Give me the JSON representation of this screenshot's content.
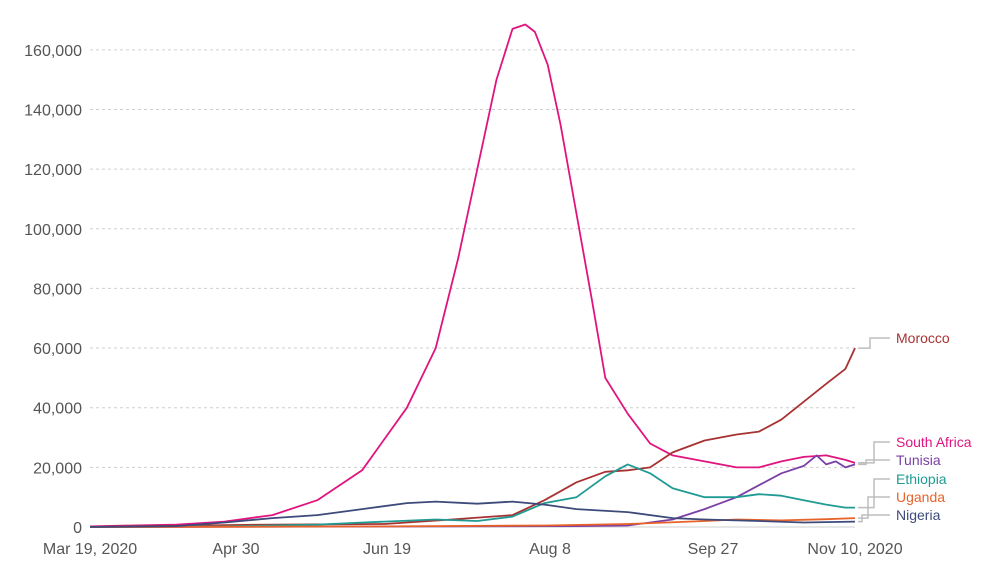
{
  "chart_data": {
    "type": "line",
    "x_ticks": [
      "Mar 19, 2020",
      "Apr 30",
      "Jun 19",
      "Aug 8",
      "Sep 27",
      "Nov 10, 2020"
    ],
    "y_ticks": [
      "0",
      "20,000",
      "40,000",
      "60,000",
      "80,000",
      "100,000",
      "120,000",
      "140,000",
      "160,000"
    ],
    "ylim": [
      0,
      170000
    ],
    "xlim": [
      "2020-03-19",
      "2020-11-13"
    ],
    "grid": "horizontal dashed",
    "legend": "end-of-line labels on right",
    "series": [
      {
        "name": "South Africa",
        "color": "#e0147f",
        "points": [
          [
            "2020-03-19",
            200
          ],
          [
            "2020-04-01",
            500
          ],
          [
            "2020-04-15",
            800
          ],
          [
            "2020-04-30",
            1800
          ],
          [
            "2020-05-15",
            4000
          ],
          [
            "2020-05-29",
            9000
          ],
          [
            "2020-06-12",
            19000
          ],
          [
            "2020-06-26",
            40000
          ],
          [
            "2020-07-05",
            60000
          ],
          [
            "2020-07-12",
            90000
          ],
          [
            "2020-07-18",
            120000
          ],
          [
            "2020-07-24",
            150000
          ],
          [
            "2020-07-29",
            167000
          ],
          [
            "2020-08-02",
            168500
          ],
          [
            "2020-08-05",
            166000
          ],
          [
            "2020-08-09",
            155000
          ],
          [
            "2020-08-13",
            135000
          ],
          [
            "2020-08-18",
            105000
          ],
          [
            "2020-08-23",
            75000
          ],
          [
            "2020-08-27",
            50000
          ],
          [
            "2020-09-03",
            38000
          ],
          [
            "2020-09-10",
            28000
          ],
          [
            "2020-09-17",
            24000
          ],
          [
            "2020-09-27",
            22000
          ],
          [
            "2020-10-07",
            20000
          ],
          [
            "2020-10-14",
            20000
          ],
          [
            "2020-10-21",
            22000
          ],
          [
            "2020-10-28",
            23500
          ],
          [
            "2020-11-04",
            24000
          ],
          [
            "2020-11-10",
            22500
          ],
          [
            "2020-11-13",
            21500
          ]
        ]
      },
      {
        "name": "Morocco",
        "color": "#a83232",
        "points": [
          [
            "2020-03-19",
            50
          ],
          [
            "2020-04-15",
            400
          ],
          [
            "2020-05-15",
            800
          ],
          [
            "2020-06-19",
            1000
          ],
          [
            "2020-07-10",
            2500
          ],
          [
            "2020-07-29",
            4000
          ],
          [
            "2020-08-08",
            9000
          ],
          [
            "2020-08-18",
            15000
          ],
          [
            "2020-08-27",
            18500
          ],
          [
            "2020-09-03",
            19000
          ],
          [
            "2020-09-10",
            20000
          ],
          [
            "2020-09-17",
            25000
          ],
          [
            "2020-09-27",
            29000
          ],
          [
            "2020-10-07",
            31000
          ],
          [
            "2020-10-14",
            32000
          ],
          [
            "2020-10-21",
            36000
          ],
          [
            "2020-10-28",
            42000
          ],
          [
            "2020-11-04",
            48000
          ],
          [
            "2020-11-10",
            53000
          ],
          [
            "2020-11-13",
            60000
          ]
        ]
      },
      {
        "name": "Tunisia",
        "color": "#7b3fa6",
        "points": [
          [
            "2020-03-19",
            0
          ],
          [
            "2020-05-15",
            100
          ],
          [
            "2020-07-10",
            200
          ],
          [
            "2020-08-18",
            300
          ],
          [
            "2020-09-03",
            500
          ],
          [
            "2020-09-17",
            2500
          ],
          [
            "2020-09-27",
            6000
          ],
          [
            "2020-10-07",
            10000
          ],
          [
            "2020-10-14",
            14000
          ],
          [
            "2020-10-21",
            18000
          ],
          [
            "2020-10-28",
            20500
          ],
          [
            "2020-11-01",
            24000
          ],
          [
            "2020-11-04",
            21000
          ],
          [
            "2020-11-07",
            22000
          ],
          [
            "2020-11-10",
            20000
          ],
          [
            "2020-11-13",
            21000
          ]
        ]
      },
      {
        "name": "Ethiopia",
        "color": "#1f9b93",
        "points": [
          [
            "2020-03-19",
            0
          ],
          [
            "2020-04-30",
            200
          ],
          [
            "2020-05-29",
            800
          ],
          [
            "2020-06-19",
            1800
          ],
          [
            "2020-07-05",
            2500
          ],
          [
            "2020-07-18",
            2000
          ],
          [
            "2020-07-29",
            3500
          ],
          [
            "2020-08-08",
            8000
          ],
          [
            "2020-08-18",
            10000
          ],
          [
            "2020-08-27",
            17000
          ],
          [
            "2020-09-03",
            21000
          ],
          [
            "2020-09-10",
            18000
          ],
          [
            "2020-09-17",
            13000
          ],
          [
            "2020-09-27",
            10000
          ],
          [
            "2020-10-07",
            10000
          ],
          [
            "2020-10-14",
            11000
          ],
          [
            "2020-10-21",
            10500
          ],
          [
            "2020-10-28",
            9000
          ],
          [
            "2020-11-04",
            7500
          ],
          [
            "2020-11-10",
            6500
          ],
          [
            "2020-11-13",
            6500
          ]
        ]
      },
      {
        "name": "Uganda",
        "color": "#e8632a",
        "points": [
          [
            "2020-03-19",
            0
          ],
          [
            "2020-06-19",
            200
          ],
          [
            "2020-08-08",
            500
          ],
          [
            "2020-09-03",
            1000
          ],
          [
            "2020-09-27",
            2000
          ],
          [
            "2020-10-07",
            2500
          ],
          [
            "2020-10-21",
            2200
          ],
          [
            "2020-11-04",
            2600
          ],
          [
            "2020-11-13",
            3000
          ]
        ]
      },
      {
        "name": "Nigeria",
        "color": "#3d4a7a",
        "points": [
          [
            "2020-03-19",
            0
          ],
          [
            "2020-04-15",
            300
          ],
          [
            "2020-04-30",
            1500
          ],
          [
            "2020-05-15",
            3000
          ],
          [
            "2020-05-29",
            4000
          ],
          [
            "2020-06-12",
            6000
          ],
          [
            "2020-06-26",
            8000
          ],
          [
            "2020-07-05",
            8500
          ],
          [
            "2020-07-18",
            7800
          ],
          [
            "2020-07-29",
            8500
          ],
          [
            "2020-08-08",
            7500
          ],
          [
            "2020-08-18",
            6000
          ],
          [
            "2020-09-03",
            5000
          ],
          [
            "2020-09-17",
            3000
          ],
          [
            "2020-09-27",
            2500
          ],
          [
            "2020-10-14",
            2000
          ],
          [
            "2020-10-28",
            1500
          ],
          [
            "2020-11-13",
            1800
          ]
        ]
      }
    ]
  }
}
